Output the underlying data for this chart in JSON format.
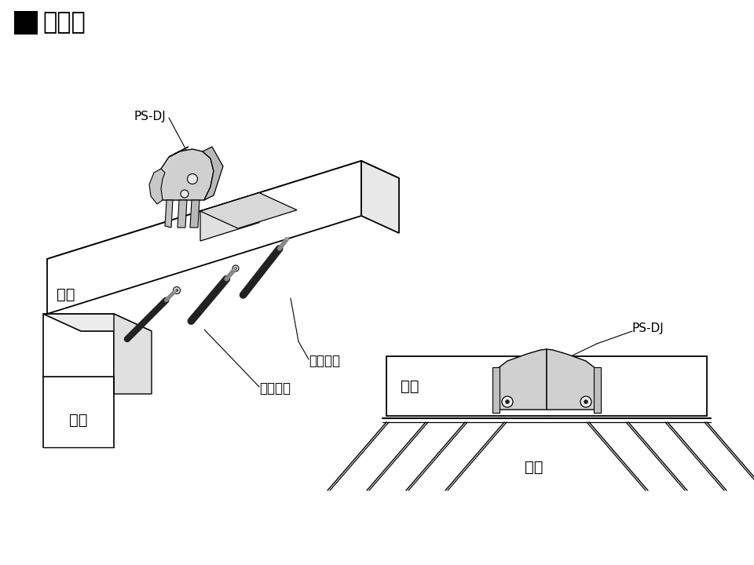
{
  "title_square": "■",
  "title_text": "取付図",
  "title_fontsize": 22,
  "bg_color": "#ffffff",
  "label_psdj_iso": "PS-DJ",
  "label_psdj_front": "PS-DJ",
  "label_dodai_iso": "土台",
  "label_dodai_front": "土台",
  "label_kiso_iso": "基礎",
  "label_kiso_front": "基礎",
  "label_kouchipin": "後打ピン",
  "label_sakipin": "先行ピン",
  "line_color": "#000000",
  "gray_light": "#d8d8d8",
  "gray_mid": "#c0c0c0",
  "gray_dark": "#a8a8a8",
  "white": "#ffffff",
  "black": "#1a1a1a"
}
